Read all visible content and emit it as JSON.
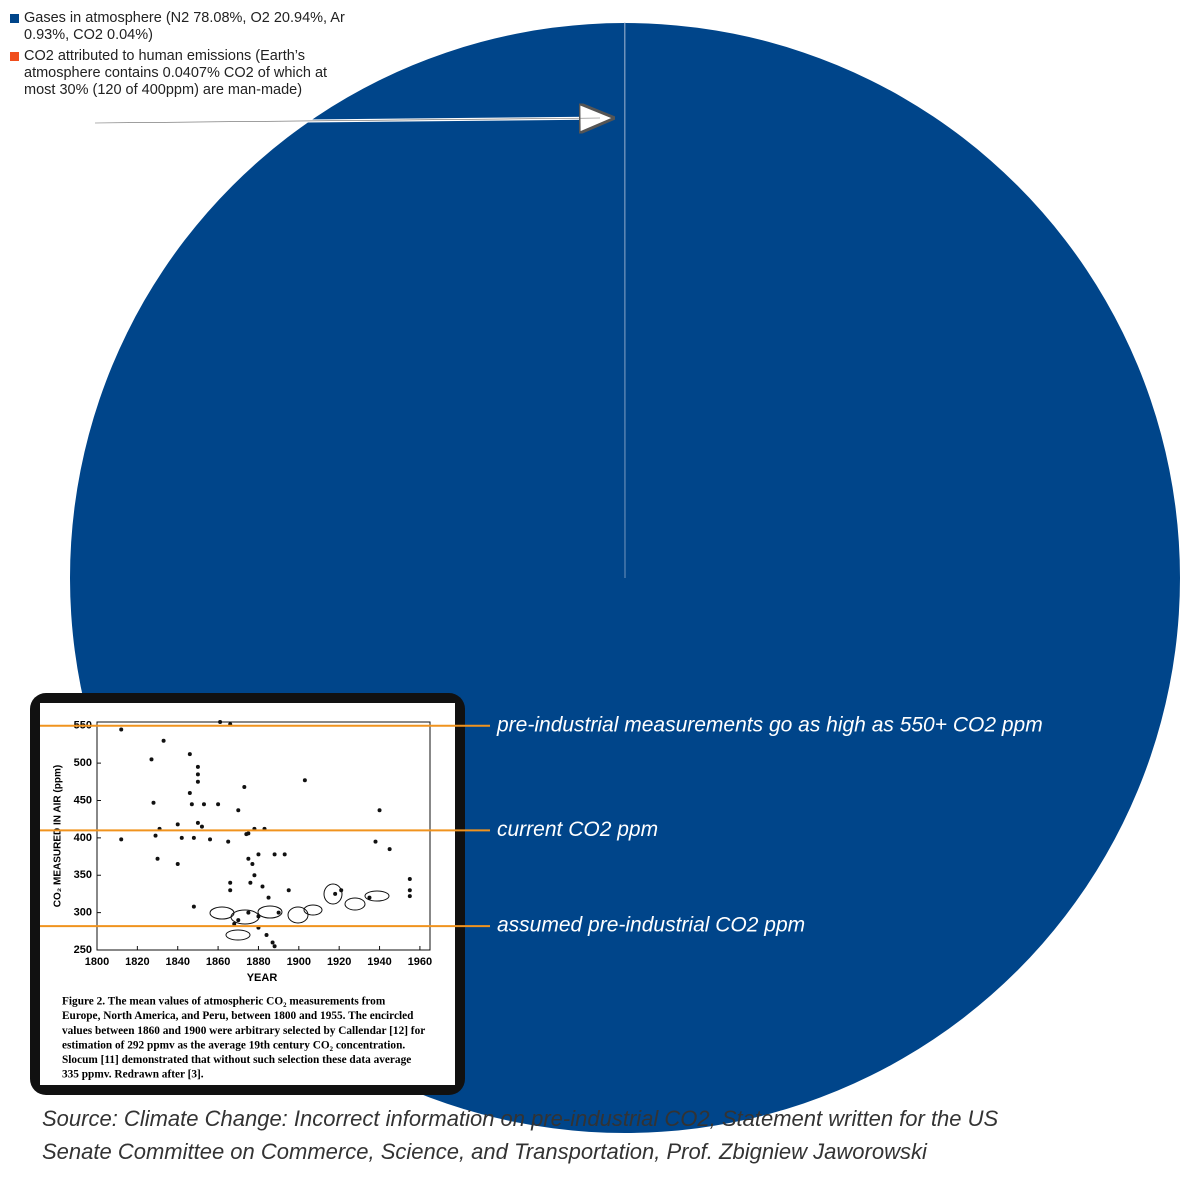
{
  "chart_data": [
    {
      "type": "pie",
      "categories": [
        "Gases in atmosphere (N2 78.08%, O2 20.94%, Ar 0.93%, CO2 0.04%)",
        "CO2 attributed to human emissions (Earth’s atmosphere contains 0.0407% CO2 of which at most 30% (120 of 400ppm) are man-made)"
      ],
      "values": [
        99.988,
        0.012
      ],
      "colors": [
        "#00458a",
        "#f04e1d"
      ],
      "legend": "top-left",
      "source_lines": [
        "Source: Climate Change: Incorrect information on pre-industrial CO2, Statement written for the US",
        "Senate Committee on Commerce, Science, and Transportation, Prof. Zbigniew Jaworowski"
      ]
    },
    {
      "type": "scatter",
      "x_label": "YEAR",
      "y_label": "CO₂ MEASURED IN AIR (ppm)",
      "x": [
        1812,
        1812,
        1827,
        1828,
        1829,
        1830,
        1831,
        1833,
        1840,
        1840,
        1842,
        1846,
        1846,
        1847,
        1848,
        1848,
        1850,
        1850,
        1850,
        1850,
        1852,
        1853,
        1856,
        1860,
        1861,
        1865,
        1866,
        1866,
        1866,
        1870,
        1873,
        1874,
        1875,
        1875,
        1877,
        1878,
        1880,
        1878,
        1876,
        1883,
        1882,
        1885,
        1888,
        1890,
        1893,
        1895,
        1903,
        1918,
        1921,
        1935,
        1938,
        1940,
        1945,
        1955,
        1955,
        1955,
        1880,
        1884,
        1887,
        1888,
        1875,
        1880,
        1870,
        1868
      ],
      "values": [
        545,
        398,
        505,
        447,
        403,
        372,
        412,
        530,
        418,
        365,
        400,
        460,
        512,
        445,
        400,
        308,
        495,
        485,
        475,
        420,
        415,
        445,
        398,
        445,
        555,
        395,
        552,
        340,
        330,
        437,
        468,
        405,
        406,
        372,
        365,
        412,
        378,
        350,
        340,
        412,
        335,
        320,
        378,
        300,
        378,
        330,
        477,
        325,
        330,
        320,
        395,
        437,
        385,
        345,
        330,
        322,
        280,
        270,
        260,
        255,
        300,
        295,
        290,
        285
      ],
      "color": "#111111",
      "xlim": [
        1800,
        1965
      ],
      "ylim": [
        250,
        555
      ],
      "xticks": [
        1800,
        1820,
        1840,
        1860,
        1880,
        1900,
        1920,
        1940,
        1960
      ],
      "yticks": [
        250,
        300,
        350,
        400,
        450,
        500,
        550
      ],
      "reference_lines": [
        {
          "value": 550,
          "label": "pre-industrial measurements go as high as 550+ CO2 ppm"
        },
        {
          "value": 410,
          "label": "current CO2 ppm"
        },
        {
          "value": 282,
          "label": "assumed pre-industrial CO2 ppm"
        }
      ],
      "reference_color": "#f0931e",
      "caption_lines": [
        "Figure 2. The mean values of atmospheric CO₂ measurements from",
        "Europe, North America, and Peru, between 1800 and 1955. The encircled",
        "values between 1860 and 1900 were arbitrary selected by Callendar [12] for",
        "estimation of 292 ppmv as the average 19th century CO₂ concentration.",
        "Slocum [11] demonstrated that without such selection these data average",
        "335 ppmv. Redrawn after [3]."
      ]
    }
  ]
}
